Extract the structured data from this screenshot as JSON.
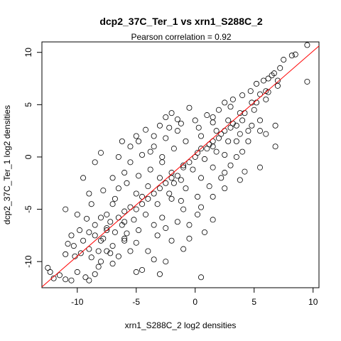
{
  "chart_data": {
    "type": "scatter",
    "title": "dcp2_37C_Ter_1 vs xrn1_S288C_2",
    "subtitle": "Pearson correlation =  0.92",
    "xlabel": "xrn1_S288C_2 log2 densities",
    "ylabel": "dcp2_37C_Ter_1 log2 densities",
    "xlim": [
      -13,
      10.5
    ],
    "ylim": [
      -12.5,
      11
    ],
    "xticks": [
      -10,
      -5,
      0,
      5,
      10
    ],
    "xtick_labels": [
      "-10",
      "-5",
      "0",
      "5",
      "10"
    ],
    "yticks": [
      -10,
      -5,
      0,
      5,
      10
    ],
    "ytick_labels": [
      "-10",
      "-5",
      "0",
      "5",
      "10"
    ],
    "grid": false,
    "marker": "open-circle",
    "point_color": "#000000",
    "fit_line": {
      "color": "#ff0000",
      "intercept": 0.32,
      "slope": 0.98
    },
    "points": [
      [
        9.5,
        10.7
      ],
      [
        9.5,
        7.2
      ],
      [
        8.5,
        9.8
      ],
      [
        8.2,
        9.7
      ],
      [
        7.5,
        9.3
      ],
      [
        7.2,
        8.5
      ],
      [
        6.7,
        8.0
      ],
      [
        6.2,
        7.5
      ],
      [
        6.5,
        7.8
      ],
      [
        5.8,
        7.3
      ],
      [
        5.2,
        7.0
      ],
      [
        4.7,
        6.3
      ],
      [
        5.5,
        6.0
      ],
      [
        6.0,
        6.3
      ],
      [
        4.0,
        5.9
      ],
      [
        3.2,
        5.5
      ],
      [
        2.5,
        5.2
      ],
      [
        -0.5,
        4.7
      ],
      [
        -1.5,
        3.6
      ],
      [
        1.5,
        3.3
      ],
      [
        7.0,
        6.8
      ],
      [
        6.8,
        3.0
      ],
      [
        6.0,
        2.2
      ],
      [
        4.5,
        1.5
      ],
      [
        6.8,
        1.0
      ],
      [
        5.5,
        2.5
      ],
      [
        4.0,
        0.5
      ],
      [
        3.8,
        -2.2
      ],
      [
        5.5,
        -1.0
      ],
      [
        4.2,
        -1.4
      ],
      [
        2.5,
        -3.0
      ],
      [
        1.5,
        -3.8
      ],
      [
        0.5,
        -4.8
      ],
      [
        -8.0,
        0.4
      ],
      [
        -8.5,
        -0.5
      ],
      [
        -6.2,
        1.5
      ],
      [
        -5.0,
        2.0
      ],
      [
        -4.2,
        2.6
      ],
      [
        -3.0,
        3.0
      ],
      [
        -2.5,
        3.8
      ],
      [
        -2.0,
        4.2
      ],
      [
        -9.5,
        -2.0
      ],
      [
        -9.0,
        -3.5
      ],
      [
        -11.0,
        -5.0
      ],
      [
        -10.0,
        -5.5
      ],
      [
        -9.2,
        -5.9
      ],
      [
        -8.5,
        -6.5
      ],
      [
        -7.5,
        -6.8
      ],
      [
        -9.5,
        -8.0
      ],
      [
        -10.3,
        -8.5
      ],
      [
        -10.8,
        -8.3
      ],
      [
        -11.0,
        -9.3
      ],
      [
        -10.2,
        -9.5
      ],
      [
        -9.7,
        -9.2
      ],
      [
        -8.8,
        -9.6
      ],
      [
        -8.2,
        -10.5
      ],
      [
        -8.5,
        -11.2
      ],
      [
        -9.3,
        -11.5
      ],
      [
        -10.0,
        -11.0
      ],
      [
        -11.5,
        -11.3
      ],
      [
        -12.3,
        -11.0
      ],
      [
        -12.5,
        -10.6
      ],
      [
        -12.0,
        -11.6
      ],
      [
        -11.0,
        -11.7
      ],
      [
        -10.5,
        -11.8
      ],
      [
        -9.0,
        -11.8
      ],
      [
        -7.5,
        -9.0
      ],
      [
        -6.0,
        -8.0
      ],
      [
        -5.0,
        -8.2
      ],
      [
        -5.5,
        -9.0
      ],
      [
        -4.0,
        -9.0
      ],
      [
        -3.5,
        -9.8
      ],
      [
        -2.5,
        -10.0
      ],
      [
        -4.5,
        -10.8
      ],
      [
        -5.0,
        -11.0
      ],
      [
        -3.0,
        -11.2
      ],
      [
        0.5,
        -11.5
      ],
      [
        -1.0,
        -8.8
      ],
      [
        -0.5,
        -7.8
      ],
      [
        0.8,
        -7.2
      ],
      [
        1.5,
        -6.0
      ],
      [
        -2.0,
        -8.0
      ],
      [
        -3.2,
        -7.5
      ],
      [
        -6.5,
        -3.0
      ],
      [
        -7.0,
        -2.0
      ],
      [
        -6.0,
        -1.5
      ],
      [
        -5.5,
        -0.5
      ],
      [
        -4.5,
        0.2
      ],
      [
        -3.5,
        1.0
      ],
      [
        -2.5,
        1.8
      ],
      [
        -1.5,
        2.5
      ],
      [
        0.0,
        3.5
      ],
      [
        1.0,
        4.0
      ],
      [
        2.0,
        4.5
      ],
      [
        3.0,
        4.8
      ],
      [
        -9.0,
        -7.2
      ],
      [
        -8.0,
        -8.0
      ],
      [
        -7.0,
        -8.5
      ],
      [
        -6.5,
        -9.5
      ],
      [
        -7.0,
        -10.2
      ],
      [
        -8.0,
        -10.0
      ],
      [
        -7.5,
        -7.0
      ],
      [
        -2.0,
        -4.0
      ],
      [
        -1.0,
        -5.0
      ],
      [
        0.2,
        -5.5
      ],
      [
        2.5,
        -1.5
      ],
      [
        3.5,
        0.0
      ],
      [
        1.5,
        1.0
      ],
      [
        -8.8,
        -4.5
      ],
      [
        -8.0,
        -5.8
      ],
      [
        -6.8,
        -4.0
      ],
      [
        -6.0,
        -5.2
      ],
      [
        -4.2,
        -5.5
      ],
      [
        -3.5,
        -6.5
      ],
      [
        -4.8,
        -7.0
      ],
      [
        -2.8,
        -5.8
      ],
      [
        -6.2,
        -6.5
      ],
      [
        -5.8,
        -7.3
      ],
      [
        -7.2,
        -6.2
      ],
      [
        -5.0,
        -3.5
      ],
      [
        -4.0,
        -2.8
      ],
      [
        -3.0,
        -2.0
      ],
      [
        -2.0,
        -1.5
      ],
      [
        -1.0,
        -0.8
      ],
      [
        0.0,
        0.0
      ],
      [
        1.0,
        0.8
      ],
      [
        2.0,
        1.8
      ],
      [
        3.0,
        2.8
      ],
      [
        4.0,
        3.5
      ],
      [
        5.0,
        4.5
      ],
      [
        6.0,
        5.5
      ],
      [
        -3.8,
        0.5
      ],
      [
        -2.8,
        0.0
      ],
      [
        -1.8,
        0.8
      ],
      [
        -0.8,
        1.5
      ],
      [
        0.5,
        2.0
      ],
      [
        1.8,
        2.5
      ],
      [
        2.8,
        3.5
      ],
      [
        3.8,
        4.2
      ],
      [
        4.8,
        5.2
      ],
      [
        -7.8,
        -3.2
      ],
      [
        -7.0,
        -4.5
      ],
      [
        -5.8,
        -2.5
      ],
      [
        -4.8,
        -1.8
      ],
      [
        -3.8,
        -1.2
      ],
      [
        -2.8,
        -0.5
      ],
      [
        -1.8,
        -2.5
      ],
      [
        -0.8,
        -3.0
      ],
      [
        0.5,
        -2.0
      ],
      [
        1.5,
        -1.0
      ],
      [
        2.5,
        0.2
      ],
      [
        3.5,
        1.5
      ],
      [
        4.5,
        2.5
      ],
      [
        5.5,
        3.5
      ],
      [
        -6.0,
        -7.8
      ],
      [
        -5.2,
        -6.0
      ],
      [
        -4.5,
        -4.5
      ],
      [
        -3.5,
        -3.5
      ],
      [
        -2.5,
        -2.5
      ],
      [
        -1.5,
        -1.8
      ],
      [
        -0.5,
        -0.5
      ],
      [
        0.5,
        0.8
      ],
      [
        1.5,
        1.5
      ],
      [
        2.5,
        2.5
      ],
      [
        3.5,
        3.0
      ],
      [
        -7.5,
        -5.5
      ],
      [
        -6.5,
        -5.8
      ],
      [
        -5.5,
        -4.8
      ],
      [
        -4.5,
        -3.8
      ],
      [
        -3.2,
        -4.5
      ],
      [
        -2.2,
        -3.5
      ],
      [
        -1.2,
        -2.2
      ],
      [
        -0.2,
        -1.2
      ],
      [
        0.8,
        -0.2
      ],
      [
        1.8,
        0.5
      ],
      [
        2.8,
        1.5
      ],
      [
        3.8,
        2.2
      ],
      [
        4.8,
        3.0
      ],
      [
        -8.5,
        -7.5
      ],
      [
        -7.8,
        -7.8
      ],
      [
        -6.8,
        -7.2
      ],
      [
        -6.0,
        -6.2
      ],
      [
        -5.0,
        -5.0
      ],
      [
        -4.0,
        -4.0
      ],
      [
        -3.0,
        -3.0
      ],
      [
        -2.0,
        -2.0
      ],
      [
        -1.0,
        -1.0
      ],
      [
        0.2,
        0.4
      ],
      [
        1.2,
        1.2
      ],
      [
        2.2,
        2.2
      ],
      [
        3.2,
        3.2
      ],
      [
        4.2,
        4.2
      ],
      [
        5.2,
        5.2
      ],
      [
        6.2,
        6.2
      ],
      [
        7.0,
        7.3
      ],
      [
        -2.5,
        -6.8
      ],
      [
        -1.5,
        -6.2
      ],
      [
        -0.5,
        -6.5
      ],
      [
        -1.2,
        -4.2
      ],
      [
        0.2,
        -3.8
      ],
      [
        1.2,
        -2.8
      ],
      [
        2.2,
        -2.0
      ],
      [
        3.0,
        -0.8
      ],
      [
        -6.5,
        0.0
      ],
      [
        -5.5,
        1.0
      ],
      [
        -4.8,
        1.5
      ],
      [
        -3.5,
        2.0
      ],
      [
        -2.2,
        2.8
      ],
      [
        -1.2,
        3.2
      ],
      [
        0.3,
        2.8
      ],
      [
        1.5,
        3.8
      ],
      [
        -9.8,
        -7.0
      ],
      [
        -9.0,
        -8.8
      ],
      [
        -10.5,
        -7.5
      ],
      [
        -8.2,
        -9.0
      ],
      [
        -7.2,
        -9.2
      ]
    ]
  }
}
